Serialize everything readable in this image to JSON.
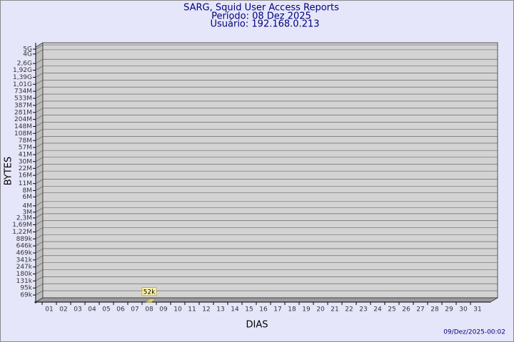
{
  "chart_data": {
    "type": "bar",
    "title": "SARG, Squid User Access Reports",
    "subtitles": [
      "Período: 08 Dez 2025",
      "Usuário: 192.168.0.213"
    ],
    "x_label": "DIAS",
    "y_label": "BYTES",
    "footer": "09/Dez/2025-00:02",
    "categories": [
      "01",
      "02",
      "03",
      "04",
      "05",
      "06",
      "07",
      "08",
      "09",
      "10",
      "11",
      "12",
      "13",
      "14",
      "15",
      "16",
      "17",
      "18",
      "19",
      "20",
      "21",
      "22",
      "23",
      "24",
      "25",
      "26",
      "27",
      "28",
      "29",
      "30",
      "31"
    ],
    "values": [
      null,
      null,
      null,
      null,
      null,
      null,
      null,
      52000,
      null,
      null,
      null,
      null,
      null,
      null,
      null,
      null,
      null,
      null,
      null,
      null,
      null,
      null,
      null,
      null,
      null,
      null,
      null,
      null,
      null,
      null,
      null
    ],
    "value_labels": [
      null,
      null,
      null,
      null,
      null,
      null,
      null,
      "52k",
      null,
      null,
      null,
      null,
      null,
      null,
      null,
      null,
      null,
      null,
      null,
      null,
      null,
      null,
      null,
      null,
      null,
      null,
      null,
      null,
      null,
      null,
      null
    ],
    "color": "#f2e27a",
    "log": true,
    "grid": true,
    "ylim": [
      50000,
      5000000000
    ],
    "yticks": [
      {
        "value": 69000,
        "label": "69k"
      },
      {
        "value": 95000,
        "label": "95k"
      },
      {
        "value": 131000,
        "label": "131k"
      },
      {
        "value": 180000,
        "label": "180k"
      },
      {
        "value": 247000,
        "label": "247k"
      },
      {
        "value": 341000,
        "label": "341k"
      },
      {
        "value": 469000,
        "label": "469k"
      },
      {
        "value": 646000,
        "label": "646k"
      },
      {
        "value": 889000,
        "label": "889k"
      },
      {
        "value": 1220000,
        "label": "1,22M"
      },
      {
        "value": 1690000,
        "label": "1,69M"
      },
      {
        "value": 2300000,
        "label": "2,3M"
      },
      {
        "value": 3000000,
        "label": "3M"
      },
      {
        "value": 4000000,
        "label": "4M"
      },
      {
        "value": 6000000,
        "label": "6M"
      },
      {
        "value": 8000000,
        "label": "8M"
      },
      {
        "value": 11000000,
        "label": "11M"
      },
      {
        "value": 16000000,
        "label": "16M"
      },
      {
        "value": 22000000,
        "label": "22M"
      },
      {
        "value": 30000000,
        "label": "30M"
      },
      {
        "value": 41000000,
        "label": "41M"
      },
      {
        "value": 57000000,
        "label": "57M"
      },
      {
        "value": 78000000,
        "label": "78M"
      },
      {
        "value": 108000000,
        "label": "108M"
      },
      {
        "value": 148000000,
        "label": "148M"
      },
      {
        "value": 204000000,
        "label": "204M"
      },
      {
        "value": 281000000,
        "label": "281M"
      },
      {
        "value": 387000000,
        "label": "387M"
      },
      {
        "value": 533000000,
        "label": "533M"
      },
      {
        "value": 734000000,
        "label": "734M"
      },
      {
        "value": 1010000000,
        "label": "1,01G"
      },
      {
        "value": 1390000000,
        "label": "1,39G"
      },
      {
        "value": 1920000000,
        "label": "1,92G"
      },
      {
        "value": 2600000000,
        "label": "2,6G"
      },
      {
        "value": 4000000000,
        "label": "4G"
      },
      {
        "value": 5000000000,
        "label": "5G"
      }
    ]
  }
}
